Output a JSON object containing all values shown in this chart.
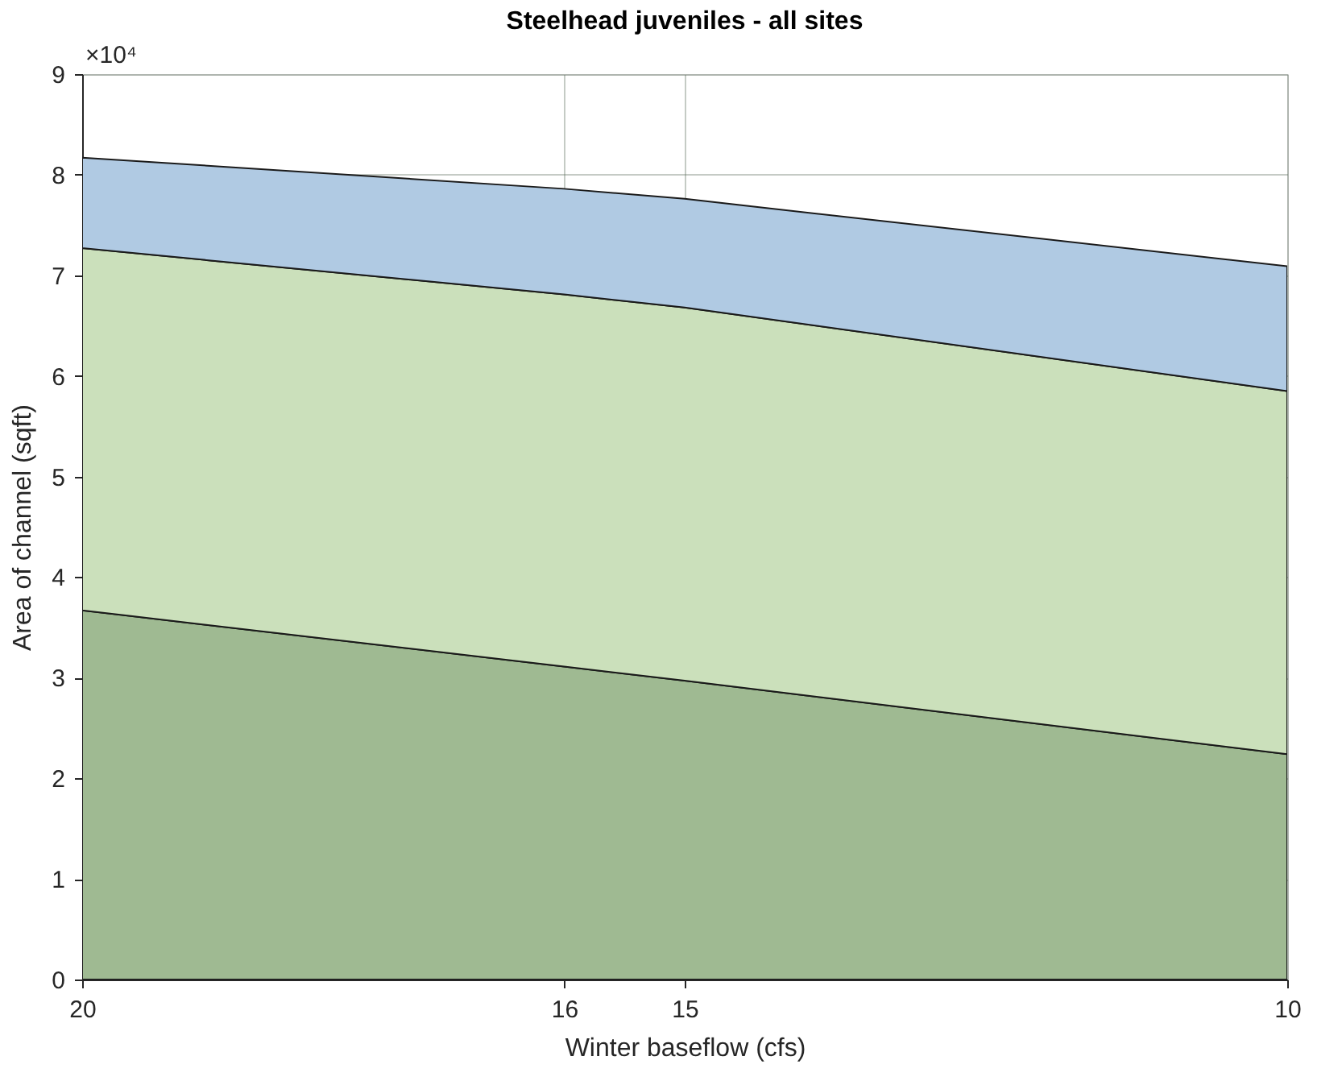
{
  "chart_data": {
    "type": "area",
    "title": "Steelhead juveniles - all sites",
    "xlabel": "Winter baseflow (cfs)",
    "ylabel": "Area of channel (sqft)",
    "x": [
      20,
      16,
      15,
      10
    ],
    "stacked": true,
    "series": [
      {
        "color": "#9fba92",
        "values": [
          3.67,
          3.11,
          2.97,
          2.24
        ]
      },
      {
        "color": "#cbe0bb",
        "values": [
          3.6,
          3.7,
          3.71,
          3.61
        ]
      },
      {
        "color": "#b0cae3",
        "values": [
          0.9,
          1.05,
          1.08,
          1.24
        ]
      }
    ],
    "xlim": [
      20,
      10
    ],
    "xticks": [
      20,
      16,
      15,
      10
    ],
    "ylim": [
      0,
      9
    ],
    "yticks": [
      0,
      1,
      2,
      3,
      4,
      5,
      6,
      7,
      8,
      9
    ],
    "annotations": [
      "×10⁴"
    ],
    "grid": true,
    "legend": false
  }
}
